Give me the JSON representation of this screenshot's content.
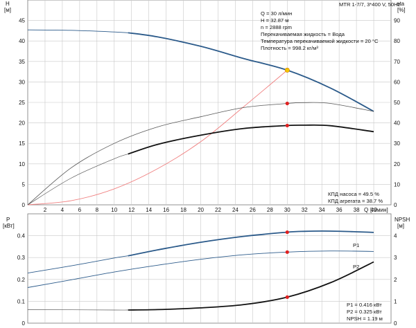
{
  "header": {
    "pump_model": "MTR 1-7/7, 3*400 V, 50Hz"
  },
  "top_info": [
    "Q = 30 л/мин",
    "H = 32.87 м",
    "n = 2888 rpm",
    "Перекачиваемая жидкость = Вода",
    "Температура перекачиваемой жидкости = 20 °C",
    "Плотность = 998.2 кг/м³"
  ],
  "top_eff": [
    "КПД насоса = 49.5 %",
    "КПД агрегата = 38.7 %"
  ],
  "bottom_info": [
    "P1 = 0.416 кВт",
    "P2 = 0.325 кВт",
    "NPSH = 1.19 м"
  ],
  "series_labels": {
    "p1": "P1",
    "p2": "P2"
  },
  "colors": {
    "blue": "#2b5a8a",
    "black": "#111111",
    "gray": "#555555",
    "red_curve": "#f08080",
    "marker": "#e02020",
    "op_marker": "#f5c400"
  },
  "chart_data": [
    {
      "type": "line",
      "x_axis": {
        "label": "Q",
        "unit": "[л/мин]",
        "range": [
          0,
          42
        ],
        "ticks": [
          2,
          4,
          6,
          8,
          10,
          12,
          14,
          16,
          18,
          20,
          22,
          24,
          26,
          28,
          30,
          32,
          34,
          36,
          38,
          40
        ]
      },
      "y_left": {
        "label": "H",
        "unit": "[м]",
        "range": [
          0,
          50
        ],
        "ticks": [
          0,
          5,
          10,
          15,
          20,
          25,
          30,
          35,
          40,
          45
        ]
      },
      "y_right": {
        "label": "eta",
        "unit": "[%]",
        "range": [
          0,
          100
        ],
        "ticks": [
          0,
          10,
          20,
          30,
          40,
          50,
          60,
          70,
          80,
          90
        ]
      },
      "grid": true,
      "series": [
        {
          "key": "head_curve",
          "axis": "left",
          "x": [
            0,
            5,
            10,
            11.6,
            15,
            20,
            25,
            30,
            35,
            40
          ],
          "y": [
            42.7,
            42.6,
            42.2,
            42.0,
            41.0,
            38.7,
            35.7,
            32.87,
            28.5,
            22.8
          ],
          "thin_until_x": 11.6
        },
        {
          "key": "system_curve",
          "axis": "left",
          "x": [
            0,
            5,
            10,
            15,
            20,
            25,
            30
          ],
          "y": [
            0,
            1.0,
            3.9,
            8.8,
            15.4,
            24.0,
            32.87
          ]
        },
        {
          "key": "pump_eff",
          "axis": "right",
          "x": [
            0,
            5,
            10,
            15,
            20,
            25,
            30,
            32,
            35,
            40
          ],
          "y": [
            0,
            18,
            30,
            38,
            43,
            47.5,
            49.5,
            49.9,
            49.5,
            45.6
          ]
        },
        {
          "key": "unit_eff",
          "axis": "right",
          "x": [
            0,
            5,
            10,
            11.6,
            15,
            20,
            25,
            30,
            32,
            35,
            40
          ],
          "y": [
            0,
            13,
            22.5,
            24.8,
            29.5,
            34.0,
            37.3,
            38.7,
            38.9,
            38.6,
            35.7
          ],
          "thin_until_x": 11.6
        }
      ],
      "markers": [
        {
          "axis": "left",
          "x": 30,
          "y": 32.87,
          "kind": "operating"
        },
        {
          "axis": "right",
          "x": 30,
          "y": 49.5,
          "kind": "point"
        },
        {
          "axis": "right",
          "x": 30,
          "y": 38.7,
          "kind": "point"
        }
      ]
    },
    {
      "type": "line",
      "x_axis": {
        "range": [
          0,
          42
        ]
      },
      "y_left": {
        "label": "P",
        "unit": "[кВт]",
        "range": [
          0,
          0.5
        ],
        "ticks": [
          0,
          0.1,
          0.2,
          0.3,
          0.4
        ]
      },
      "y_right": {
        "label": "NPSH",
        "unit": "[м]",
        "range": [
          0,
          5
        ],
        "ticks": [
          0,
          1,
          2,
          3,
          4
        ]
      },
      "grid": true,
      "series": [
        {
          "key": "p1",
          "name": "P1",
          "axis": "left",
          "x": [
            0,
            5,
            10,
            11.6,
            15,
            20,
            25,
            30,
            32,
            35,
            40
          ],
          "y": [
            0.229,
            0.262,
            0.298,
            0.308,
            0.335,
            0.37,
            0.397,
            0.416,
            0.42,
            0.421,
            0.415
          ],
          "thin_until_x": 11.6
        },
        {
          "key": "p2",
          "name": "P2",
          "axis": "left",
          "x": [
            0,
            5,
            10,
            15,
            20,
            25,
            30,
            35,
            40
          ],
          "y": [
            0.163,
            0.198,
            0.234,
            0.265,
            0.292,
            0.313,
            0.325,
            0.33,
            0.328
          ]
        },
        {
          "key": "npsh",
          "axis": "right",
          "x": [
            0,
            10,
            11.6,
            15,
            20,
            25,
            30,
            35,
            40
          ],
          "y": [
            0.62,
            0.6,
            0.6,
            0.62,
            0.7,
            0.85,
            1.19,
            1.85,
            2.8
          ],
          "thin_until_x": 11.6
        }
      ],
      "markers": [
        {
          "axis": "left",
          "x": 30,
          "y": 0.416,
          "kind": "point"
        },
        {
          "axis": "left",
          "x": 30,
          "y": 0.325,
          "kind": "point"
        },
        {
          "axis": "right",
          "x": 30,
          "y": 1.19,
          "kind": "point"
        }
      ]
    }
  ]
}
